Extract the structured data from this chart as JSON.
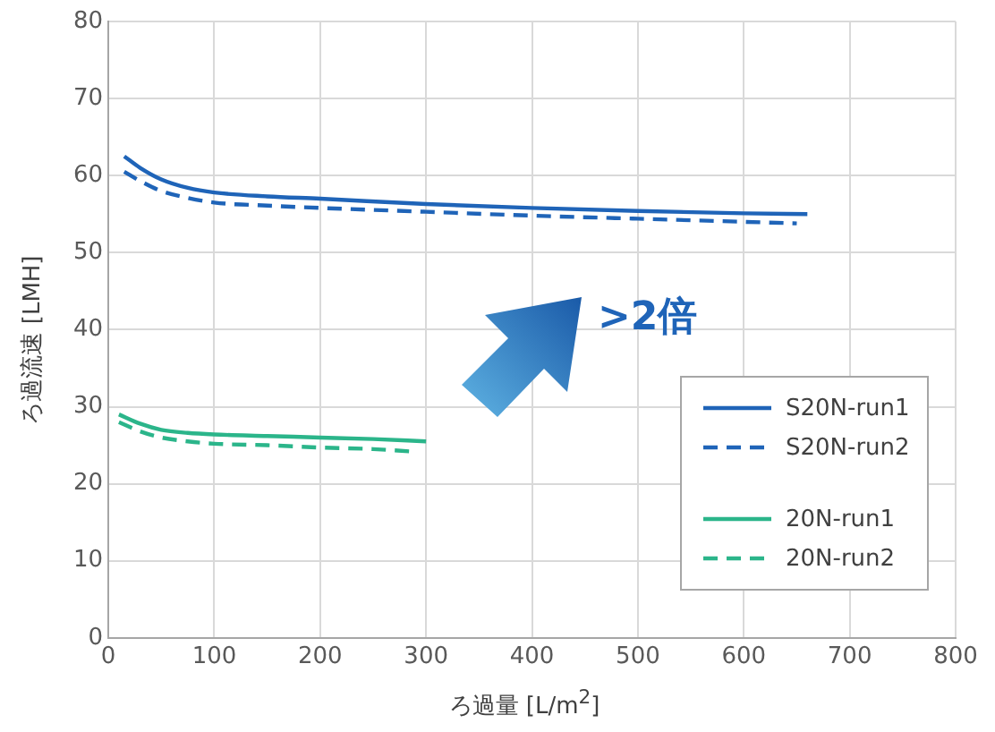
{
  "chart_data": {
    "type": "line",
    "xlabel": "ろ過量 [L/m$^{2}$]",
    "ylabel": "ろ過流速 [LMH]",
    "xlim": [
      0,
      800
    ],
    "xticks": [
      0,
      100,
      200,
      300,
      400,
      500,
      600,
      700,
      800
    ],
    "ylim": [
      0,
      80
    ],
    "yticks": [
      0,
      10,
      20,
      30,
      40,
      50,
      60,
      70,
      80
    ],
    "grid": true,
    "legend": "bottom right",
    "marker": "none",
    "annotations": [
      ">2倍"
    ],
    "series": [
      {
        "name": "S20N-run1",
        "color": "#1f64b8",
        "line_style": "solid",
        "x": [
          15,
          30,
          50,
          75,
          100,
          150,
          200,
          300,
          400,
          500,
          600,
          660
        ],
        "values": [
          62.5,
          61,
          59.5,
          58.4,
          57.8,
          57.3,
          57,
          56.3,
          55.8,
          55.4,
          55.1,
          55
        ]
      },
      {
        "name": "S20N-run2",
        "color": "#1f64b8",
        "line_style": "dashed",
        "x": [
          15,
          30,
          50,
          75,
          100,
          150,
          200,
          300,
          400,
          500,
          600,
          650
        ],
        "values": [
          60.5,
          59.3,
          58,
          57.1,
          56.5,
          56.1,
          55.8,
          55.3,
          54.8,
          54.4,
          54,
          53.8
        ]
      },
      {
        "name": "20N-run1",
        "color": "#2bb58a",
        "line_style": "solid",
        "x": [
          10,
          30,
          50,
          75,
          100,
          150,
          200,
          250,
          300
        ],
        "values": [
          29,
          27.8,
          27,
          26.6,
          26.4,
          26.2,
          26,
          25.8,
          25.5
        ]
      },
      {
        "name": "20N-run2",
        "color": "#2bb58a",
        "line_style": "dashed",
        "x": [
          10,
          30,
          50,
          75,
          100,
          150,
          200,
          250,
          285
        ],
        "values": [
          28,
          26.8,
          26,
          25.5,
          25.2,
          25,
          24.7,
          24.5,
          24.2
        ]
      }
    ]
  }
}
